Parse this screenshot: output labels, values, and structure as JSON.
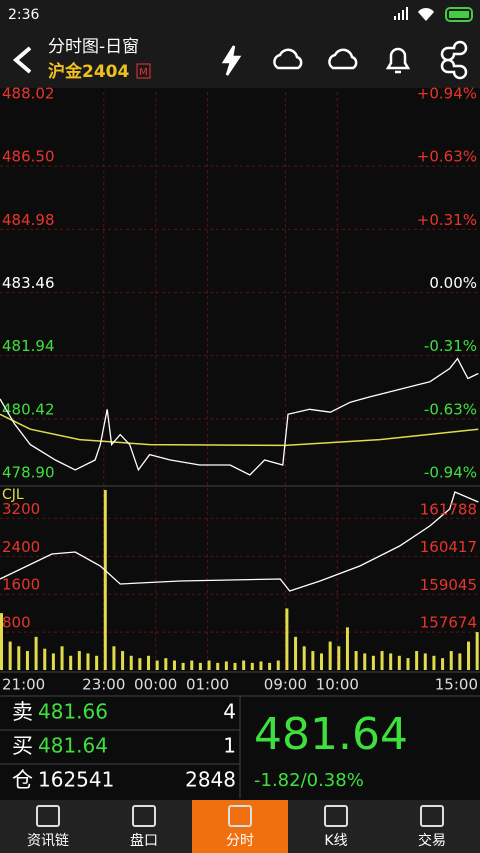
{
  "status_bar": {
    "time": "2:36"
  },
  "header": {
    "title": "分时图-日窗",
    "symbol": "沪金2404",
    "badge": "M"
  },
  "chart": {
    "xlim": [
      0,
      555
    ],
    "xticks": [
      {
        "value": 0,
        "label": "21:00"
      },
      {
        "value": 120,
        "label": "23:00"
      },
      {
        "value": 180,
        "label": "00:00"
      },
      {
        "value": 240,
        "label": "01:00"
      },
      {
        "value": 330,
        "label": "09:00"
      },
      {
        "value": 390,
        "label": "10:00"
      },
      {
        "value": 555,
        "label": "15:00"
      }
    ],
    "price": {
      "ylim": [
        478.9,
        488.02
      ],
      "yticks": [
        488.02,
        {
          "value": 486.5,
          "label": "486.50"
        },
        484.98,
        483.46,
        481.94,
        480.42,
        {
          "value": 478.9,
          "label": "478.90"
        }
      ],
      "pct_labels": [
        "+0.94%",
        "+0.63%",
        "+0.31%",
        "0.00%",
        "-0.31%",
        "-0.63%",
        "-0.94%"
      ],
      "line": {
        "color": "#ffffff",
        "x": [
          0,
          17,
          35,
          64,
          87,
          110,
          116,
          124,
          129,
          139,
          150,
          160,
          173,
          197,
          231,
          266,
          289,
          306,
          327,
          333,
          358,
          382,
          405,
          428,
          451,
          474,
          497,
          520,
          529,
          541,
          553
        ],
        "values": [
          480.9,
          480.29,
          479.8,
          479.43,
          479.19,
          479.43,
          479.8,
          480.65,
          479.8,
          480.04,
          479.8,
          479.19,
          479.56,
          479.43,
          479.31,
          479.31,
          479.07,
          479.43,
          479.31,
          480.53,
          480.65,
          480.58,
          480.82,
          480.95,
          481.07,
          481.19,
          481.31,
          481.63,
          481.87,
          481.39,
          481.51
        ]
      },
      "average": {
        "color": "#e2dc4c",
        "x": [
          0,
          35,
          92,
          173,
          330,
          439,
          553
        ],
        "values": [
          480.53,
          480.17,
          479.92,
          479.8,
          479.78,
          479.92,
          480.17
        ]
      }
    },
    "volume": {
      "label": "CJL",
      "color": "#e2dc4c",
      "ylim": [
        0,
        3800
      ],
      "yticks": [
        3200,
        2400,
        1600,
        800
      ],
      "x": [
        0,
        10,
        20,
        30,
        40,
        50,
        60,
        70,
        80,
        90,
        100,
        110,
        120,
        130,
        140,
        150,
        160,
        170,
        180,
        190,
        200,
        210,
        220,
        230,
        240,
        250,
        260,
        270,
        280,
        290,
        300,
        310,
        320,
        330,
        340,
        350,
        360,
        370,
        380,
        390,
        400,
        410,
        420,
        430,
        440,
        450,
        460,
        470,
        480,
        490,
        500,
        510,
        520,
        530,
        540,
        550
      ],
      "values": [
        1200,
        600,
        500,
        400,
        700,
        450,
        350,
        500,
        300,
        400,
        350,
        300,
        3800,
        500,
        400,
        300,
        250,
        300,
        200,
        250,
        200,
        150,
        200,
        150,
        200,
        150,
        180,
        150,
        200,
        150,
        180,
        150,
        200,
        1300,
        700,
        500,
        400,
        350,
        600,
        500,
        900,
        400,
        350,
        300,
        400,
        350,
        300,
        250,
        400,
        350,
        300,
        250,
        400,
        350,
        600,
        800
      ]
    },
    "open_interest": {
      "color": "#ffffff",
      "ylim": [
        156290,
        162844
      ],
      "yticks": [
        161788,
        160417,
        159045,
        157674
      ],
      "x": [
        0,
        60,
        87,
        116,
        139,
        208,
        324,
        335,
        370,
        416,
        462,
        497,
        520,
        526,
        553
      ],
      "values": [
        159604,
        160514,
        160586,
        160077,
        159422,
        159531,
        159604,
        159167,
        159531,
        160077,
        160805,
        161533,
        162152,
        162771,
        162407
      ]
    }
  },
  "quote": {
    "sell_label": "卖",
    "sell_price": 481.66,
    "sell_qty": 4,
    "buy_label": "买",
    "buy_price": 481.64,
    "buy_qty": 1,
    "oi_label": "仓",
    "oi": 162541,
    "oi_change": 2848,
    "last": 481.64,
    "change": "-1.82/0.38%"
  },
  "tabs": [
    "资讯链",
    "盘口",
    "分时",
    "K线",
    "交易"
  ],
  "active_tab": 2
}
